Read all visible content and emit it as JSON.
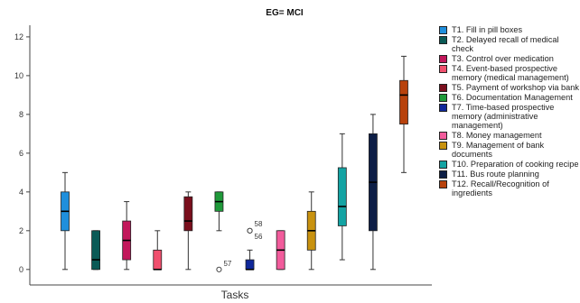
{
  "chart_data": {
    "type": "boxplot",
    "title": "EG= MCI",
    "xlabel": "Tasks",
    "ylabel": "",
    "ylim": [
      -0.8,
      12.6
    ],
    "yticks": [
      0,
      2,
      4,
      6,
      8,
      10,
      12
    ],
    "grid": false,
    "legend_position": "right",
    "series": [
      {
        "name": "T1. Fill in pill boxes",
        "color": "#1f8fdc",
        "min": 0,
        "q1": 2,
        "median": 3,
        "q3": 4,
        "max": 5,
        "outliers": []
      },
      {
        "name": "T2. Delayed recall of medical check",
        "color": "#0b5a56",
        "min": 0,
        "q1": 0,
        "median": 0.5,
        "q3": 2,
        "max": 2,
        "outliers": []
      },
      {
        "name": "T3. Control over medication",
        "color": "#c2185b",
        "min": 0,
        "q1": 0.5,
        "median": 1.5,
        "q3": 2.5,
        "max": 3.5,
        "outliers": []
      },
      {
        "name": "T4. Event-based prospective memory (medical management)",
        "color": "#f0506e",
        "min": 0,
        "q1": 0,
        "median": 0,
        "q3": 1,
        "max": 2,
        "outliers": []
      },
      {
        "name": "T5. Payment of workshop via bank",
        "color": "#7a0f1d",
        "min": 0,
        "q1": 2,
        "median": 2.5,
        "q3": 3.75,
        "max": 4,
        "outliers": []
      },
      {
        "name": "T6. Documentation Management",
        "color": "#1f9a3a",
        "min": 2,
        "q1": 3,
        "median": 3.5,
        "q3": 4,
        "max": 4,
        "outliers": [
          {
            "value": 0,
            "label": "57"
          }
        ]
      },
      {
        "name": "T7. Time-based prospective memory (administrative management)",
        "color": "#10289a",
        "min": 0,
        "q1": 0,
        "median": 0,
        "q3": 0.5,
        "max": 1,
        "outliers": [
          {
            "value": 2,
            "label": "58"
          },
          {
            "value": 2,
            "label": "56"
          }
        ]
      },
      {
        "name": "T8. Money management",
        "color": "#f25c9c",
        "min": 0,
        "q1": 0,
        "median": 1,
        "q3": 2,
        "max": 2,
        "outliers": []
      },
      {
        "name": "T9. Management of bank documents",
        "color": "#c8920f",
        "min": 0,
        "q1": 1,
        "median": 2,
        "q3": 3,
        "max": 4,
        "outliers": []
      },
      {
        "name": "T10. Preparation of cooking recipe",
        "color": "#13a3a3",
        "min": 0.5,
        "q1": 2.25,
        "median": 3.25,
        "q3": 5.25,
        "max": 7,
        "outliers": []
      },
      {
        "name": "T11. Bus route planning",
        "color": "#0d1e46",
        "min": 0,
        "q1": 2,
        "median": 4.5,
        "q3": 7,
        "max": 8,
        "outliers": []
      },
      {
        "name": "T12. Recall/Recognition of ingredients",
        "color": "#b8420c",
        "min": 5,
        "q1": 7.5,
        "median": 9,
        "q3": 9.75,
        "max": 11,
        "outliers": []
      }
    ]
  }
}
